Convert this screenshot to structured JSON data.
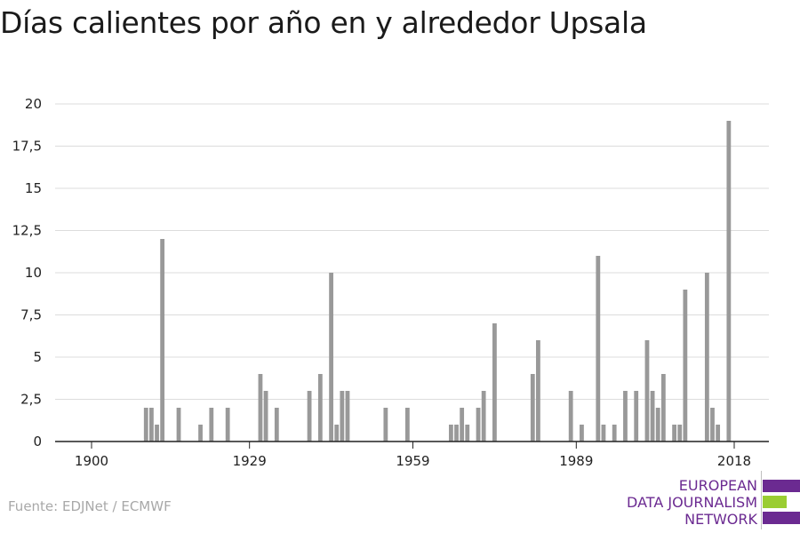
{
  "chart_data": {
    "type": "bar",
    "title": "Días calientes por año en y alrededor Upsala",
    "xlabel": "",
    "ylabel": "",
    "xlim": [
      1900,
      2019
    ],
    "ylim": [
      0,
      20
    ],
    "y_ticks": [
      0,
      2.5,
      5,
      7.5,
      10,
      12.5,
      15,
      17.5,
      20
    ],
    "y_tick_labels": [
      "0",
      "2,5",
      "5",
      "7,5",
      "10",
      "12,5",
      "15",
      "17,5",
      "20"
    ],
    "x_ticks": [
      1900,
      1929,
      1959,
      1989,
      2018
    ],
    "x_tick_labels": [
      "1900",
      "1929",
      "1959",
      "1989",
      "2018"
    ],
    "grid": true,
    "bar_color": "#999999",
    "x": [
      1910,
      1911,
      1912,
      1913,
      1916,
      1920,
      1922,
      1925,
      1931,
      1932,
      1934,
      1940,
      1942,
      1944,
      1945,
      1946,
      1947,
      1954,
      1958,
      1966,
      1967,
      1968,
      1969,
      1971,
      1972,
      1974,
      1981,
      1982,
      1988,
      1990,
      1993,
      1994,
      1996,
      1998,
      2000,
      2002,
      2003,
      2004,
      2005,
      2007,
      2008,
      2009,
      2013,
      2014,
      2015,
      2017
    ],
    "values": [
      2,
      2,
      1,
      12,
      2,
      1,
      2,
      2,
      4,
      3,
      2,
      3,
      4,
      10,
      1,
      3,
      3,
      2,
      2,
      1,
      1,
      2,
      1,
      2,
      3,
      7,
      4,
      6,
      3,
      1,
      11,
      1,
      1,
      3,
      3,
      6,
      3,
      2,
      4,
      1,
      1,
      9,
      10,
      2,
      1,
      19
    ]
  },
  "footer": {
    "source": "Fuente: EDJNet / ECMWF"
  },
  "logo": {
    "lines": [
      "EUROPEAN",
      "DATA JOURNALISM",
      "NETWORK"
    ],
    "colors": {
      "purple": "#6b2a91",
      "green": "#9acd32"
    }
  }
}
